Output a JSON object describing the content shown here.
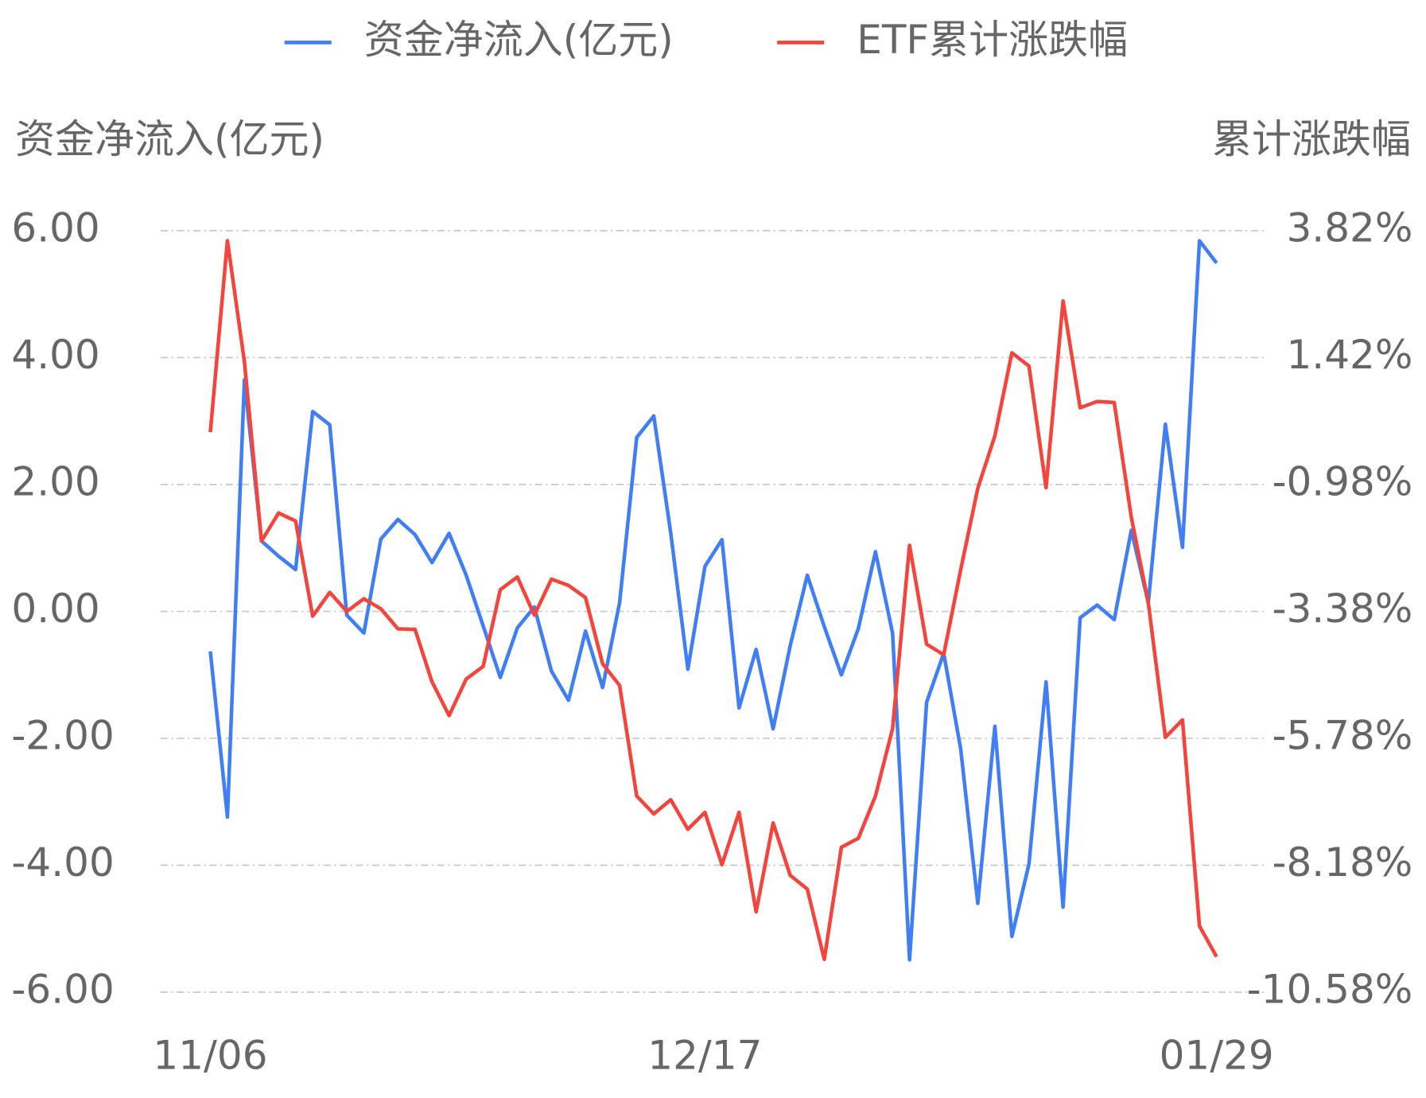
{
  "chart_data": {
    "type": "line",
    "legend": "top",
    "y_label": "资金净流入(亿元)",
    "y2_label": "累计涨跌幅",
    "categories": [
      "11/06",
      null,
      null,
      null,
      null,
      null,
      null,
      null,
      null,
      null,
      null,
      null,
      null,
      null,
      null,
      null,
      null,
      null,
      null,
      null,
      null,
      null,
      null,
      null,
      null,
      null,
      null,
      null,
      null,
      "12/17",
      null,
      null,
      null,
      null,
      null,
      null,
      null,
      null,
      null,
      null,
      null,
      null,
      null,
      null,
      null,
      null,
      null,
      null,
      null,
      null,
      null,
      null,
      null,
      null,
      null,
      null,
      null,
      null,
      null,
      "01/29"
    ],
    "series": [
      {
        "name": "资金净流入(亿元)",
        "color": "#3f7ef5",
        "axis": "y",
        "values": [
          -0.63,
          -3.24,
          3.65,
          1.11,
          0.87,
          0.66,
          3.15,
          2.94,
          -0.06,
          -0.34,
          1.14,
          1.45,
          1.21,
          0.77,
          1.23,
          0.57,
          -0.23,
          -1.04,
          -0.26,
          0.07,
          -0.94,
          -1.4,
          -0.31,
          -1.2,
          0.14,
          2.74,
          3.08,
          1.23,
          -0.91,
          0.71,
          1.13,
          -1.52,
          -0.6,
          -1.85,
          -0.54,
          0.57,
          -0.24,
          -1.0,
          -0.27,
          0.94,
          -0.34,
          -5.49,
          -1.43,
          -0.66,
          -2.17,
          -4.6,
          -1.81,
          -5.12,
          -3.98,
          -1.11,
          -4.66,
          -0.1,
          0.1,
          -0.13,
          1.28,
          0.14,
          2.95,
          1.01,
          5.84,
          5.49
        ]
      },
      {
        "name": "ETF累计涨跌幅",
        "color": "#f5443c",
        "axis": "y2",
        "values": [
          0.01,
          3.63,
          1.34,
          -2.05,
          -1.52,
          -1.67,
          -3.47,
          -3.02,
          -3.38,
          -3.14,
          -3.33,
          -3.71,
          -3.72,
          -4.71,
          -5.35,
          -4.66,
          -4.42,
          -2.97,
          -2.73,
          -3.45,
          -2.77,
          -2.89,
          -3.12,
          -4.37,
          -4.78,
          -6.87,
          -7.21,
          -6.94,
          -7.5,
          -7.18,
          -8.17,
          -7.18,
          -9.06,
          -7.38,
          -8.37,
          -8.63,
          -9.96,
          -7.84,
          -7.67,
          -6.87,
          -5.6,
          -2.13,
          -4.0,
          -4.2,
          -2.59,
          -1.05,
          -0.06,
          1.51,
          1.26,
          -1.04,
          2.49,
          0.47,
          0.59,
          0.57,
          -1.6,
          -3.22,
          -5.76,
          -5.43,
          -9.33,
          -9.91
        ]
      }
    ],
    "ylim": [
      -6,
      6
    ],
    "yticks": [
      {
        "value": 6,
        "label": "6.00"
      },
      {
        "value": 4,
        "label": "4.00"
      },
      {
        "value": 2,
        "label": "2.00"
      },
      {
        "value": 0,
        "label": "0.00"
      },
      {
        "value": -2,
        "label": "-2.00"
      },
      {
        "value": -4,
        "label": "-4.00"
      },
      {
        "value": -6,
        "label": "-6.00"
      }
    ],
    "y2lim": [
      -10.58,
      3.82
    ],
    "y2ticks": [
      {
        "value": 3.82,
        "label": "3.82%"
      },
      {
        "value": 1.42,
        "label": "1.42%"
      },
      {
        "value": -0.98,
        "label": "-0.98%"
      },
      {
        "value": -3.38,
        "label": "-3.38%"
      },
      {
        "value": -5.78,
        "label": "-5.78%"
      },
      {
        "value": -8.18,
        "label": "-8.18%"
      },
      {
        "value": -10.58,
        "label": "-10.58%"
      }
    ],
    "grid": true
  }
}
